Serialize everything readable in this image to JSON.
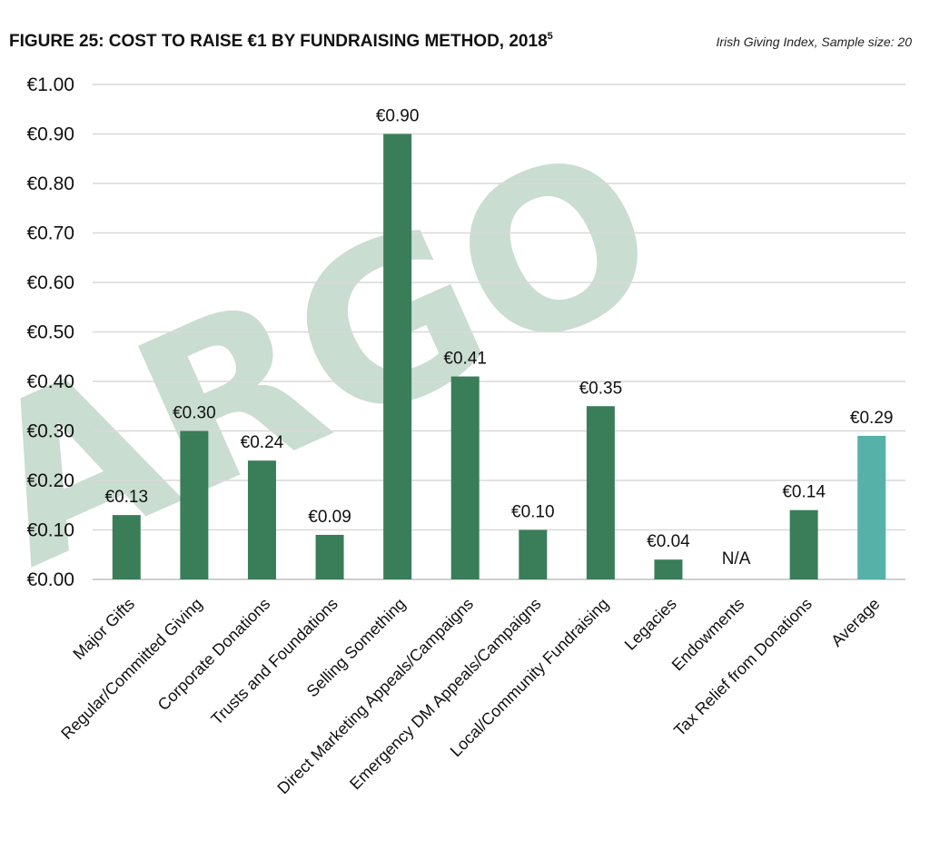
{
  "chart_data": {
    "type": "bar",
    "title": "FIGURE 25: COST TO RAISE €1 BY FUNDRAISING METHOD, 2018",
    "title_superscript": "5",
    "subtitle": "Irish Giving Index, Sample size: 20",
    "watermark": "ARGO",
    "categories": [
      "Major Gifts",
      "Regular/Committed Giving",
      "Corporate Donations",
      "Trusts and Foundations",
      "Selling Something",
      "Direct Marketing Appeals/Campaigns",
      "Emergency DM Appeals/Campaigns",
      "Local/Community Fundraising",
      "Legacies",
      "Endowments",
      "Tax Relief from Donations",
      "Average"
    ],
    "values": [
      0.13,
      0.3,
      0.24,
      0.09,
      0.9,
      0.41,
      0.1,
      0.35,
      0.04,
      null,
      0.14,
      0.29
    ],
    "data_labels": [
      "€0.13",
      "€0.30",
      "€0.24",
      "€0.09",
      "€0.90",
      "€0.41",
      "€0.10",
      "€0.35",
      "€0.04",
      "N/A",
      "€0.14",
      "€0.29"
    ],
    "yticks": [
      0.0,
      0.1,
      0.2,
      0.3,
      0.4,
      0.5,
      0.6,
      0.7,
      0.8,
      0.9,
      1.0
    ],
    "ytick_labels": [
      "€0.00",
      "€0.10",
      "€0.20",
      "€0.30",
      "€0.40",
      "€0.50",
      "€0.60",
      "€0.70",
      "€0.80",
      "€0.90",
      "€1.00"
    ],
    "ylim": [
      0,
      1.0
    ],
    "xlabel": "",
    "ylabel": "",
    "grid": true,
    "colors": {
      "bar": "#3a7d59",
      "average": "#56b1a9",
      "grid": "#d9d9d9",
      "axis": "#bfbfbf",
      "watermark": "#c9ddd1"
    }
  }
}
